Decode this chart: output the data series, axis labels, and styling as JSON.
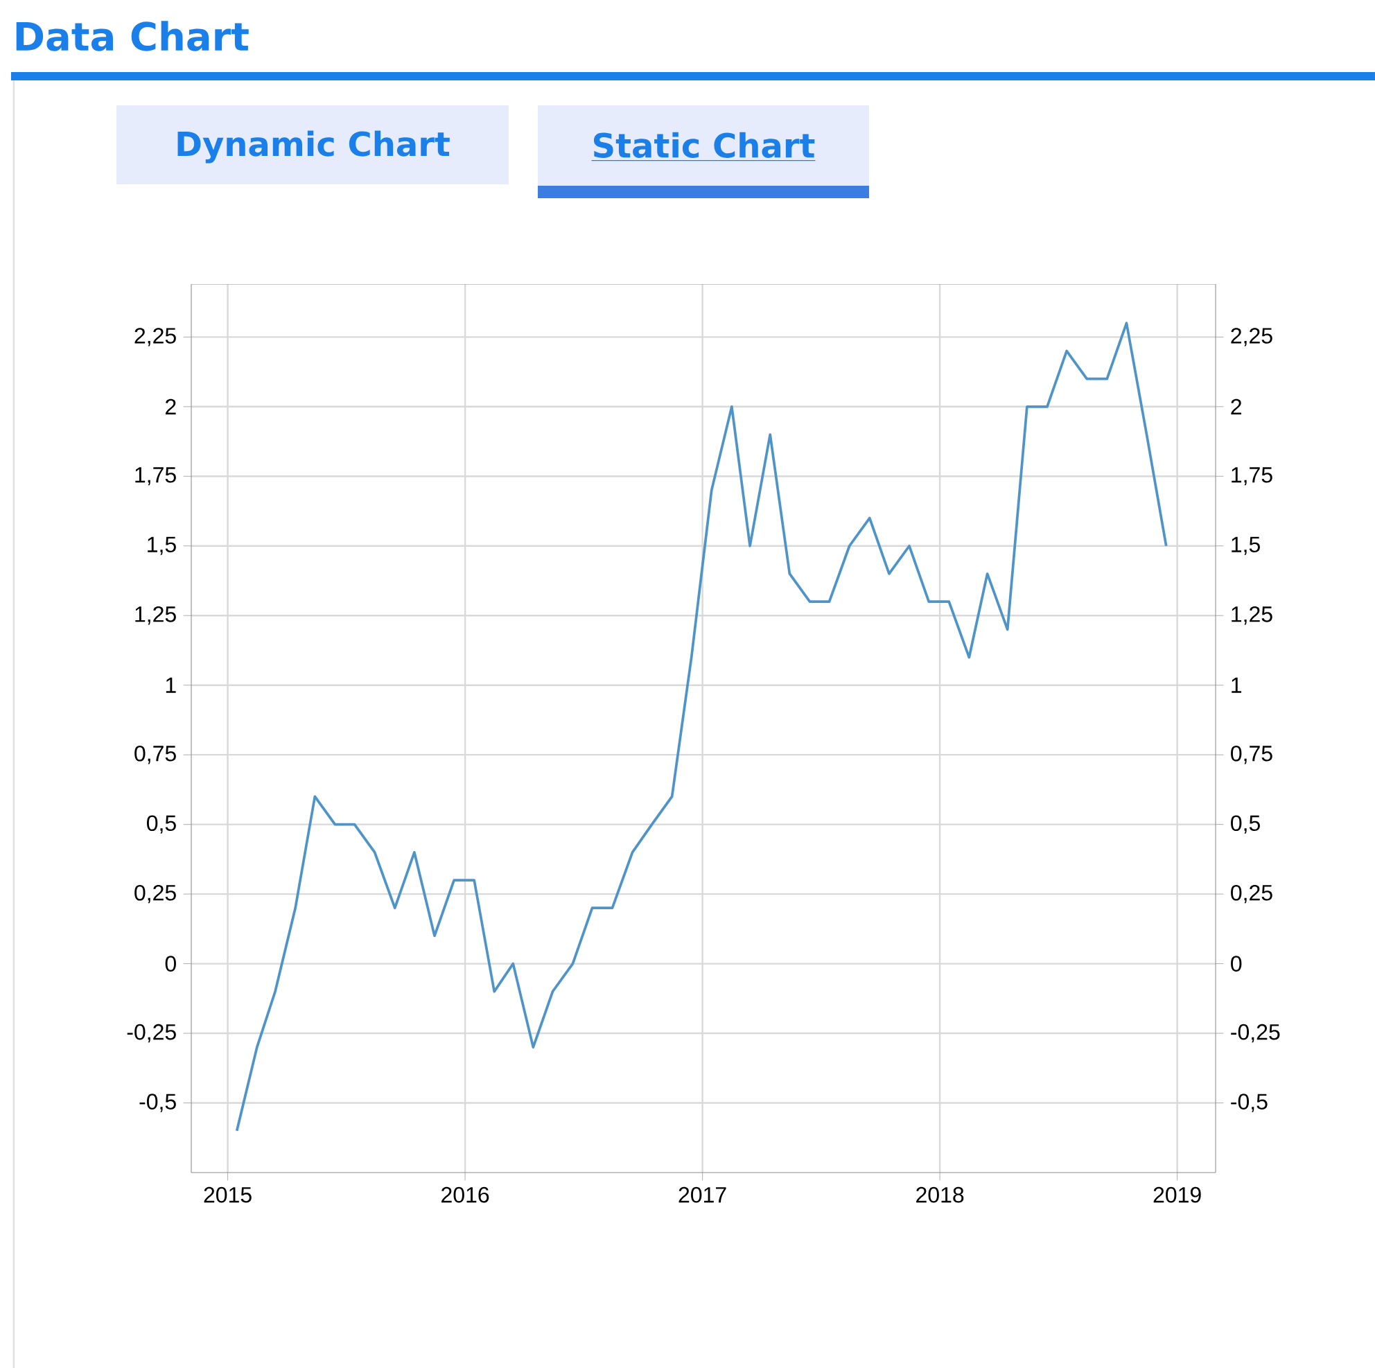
{
  "chart_data": {
    "type": "line",
    "title": "Data Chart",
    "annotations": [
      "Dynamic Chart",
      "Static Chart"
    ],
    "x": [
      "2015-01-15",
      "2015-02-15",
      "2015-03-15",
      "2015-04-15",
      "2015-05-15",
      "2015-06-15",
      "2015-07-15",
      "2015-08-15",
      "2015-09-15",
      "2015-10-15",
      "2015-11-15",
      "2015-12-15",
      "2016-01-15",
      "2016-02-15",
      "2016-03-15",
      "2016-04-15",
      "2016-05-15",
      "2016-06-15",
      "2016-07-15",
      "2016-08-15",
      "2016-09-15",
      "2016-10-15",
      "2016-11-15",
      "2016-12-15",
      "2017-01-15",
      "2017-02-15",
      "2017-03-15",
      "2017-04-15",
      "2017-05-15",
      "2017-06-15",
      "2017-07-15",
      "2017-08-15",
      "2017-09-15",
      "2017-10-15",
      "2017-11-15",
      "2017-12-15",
      "2018-01-15",
      "2018-02-15",
      "2018-03-15",
      "2018-04-15",
      "2018-05-15",
      "2018-06-15",
      "2018-07-15",
      "2018-08-15",
      "2018-09-15",
      "2018-10-15",
      "2018-11-15",
      "2018-12-15"
    ],
    "series": [
      {
        "color": "#4f94c8",
        "values": [
          -0.6,
          -0.3,
          -0.1,
          0.2,
          0.6,
          0.5,
          0.5,
          0.4,
          0.2,
          0.4,
          0.1,
          0.3,
          0.3,
          -0.1,
          0.0,
          -0.3,
          -0.1,
          0.0,
          0.2,
          0.2,
          0.4,
          0.5,
          0.6,
          1.1,
          1.7,
          2.0,
          1.5,
          1.9,
          1.4,
          1.3,
          1.3,
          1.5,
          1.6,
          1.4,
          1.5,
          1.3,
          1.3,
          1.1,
          1.4,
          1.2,
          2.0,
          2.0,
          2.2,
          2.1,
          2.1,
          2.3,
          1.9,
          1.5
        ]
      }
    ],
    "xlim": [
      "2014-11-06",
      "2019-03-01"
    ],
    "xticks": [
      "2015",
      "2016",
      "2017",
      "2018",
      "2019"
    ],
    "ylim": [
      -0.75,
      2.44
    ],
    "yticks": [
      {
        "value": -0.5,
        "label": "-0,5"
      },
      {
        "value": -0.25,
        "label": "-0,25"
      },
      0,
      {
        "value": 0.25,
        "label": "0,25"
      },
      {
        "value": 0.5,
        "label": "0,5"
      },
      {
        "value": 0.75,
        "label": "0,75"
      },
      1,
      {
        "value": 1.25,
        "label": "1,25"
      },
      {
        "value": 1.5,
        "label": "1,5"
      },
      {
        "value": 1.75,
        "label": "1,75"
      },
      2,
      {
        "value": 2.25,
        "label": "2,25"
      }
    ],
    "y2lim": [
      -0.75,
      2.44
    ],
    "y2ticks": [
      {
        "value": -0.5,
        "label": "-0,5"
      },
      {
        "value": -0.25,
        "label": "-0,25"
      },
      0,
      {
        "value": 0.25,
        "label": "0,25"
      },
      {
        "value": 0.5,
        "label": "0,5"
      },
      {
        "value": 0.75,
        "label": "0,75"
      },
      1,
      {
        "value": 1.25,
        "label": "1,25"
      },
      {
        "value": 1.5,
        "label": "1,5"
      },
      {
        "value": 1.75,
        "label": "1,75"
      },
      2,
      {
        "value": 2.25,
        "label": "2,25"
      }
    ],
    "grid": true,
    "marker": "none",
    "line_style": "solid"
  }
}
